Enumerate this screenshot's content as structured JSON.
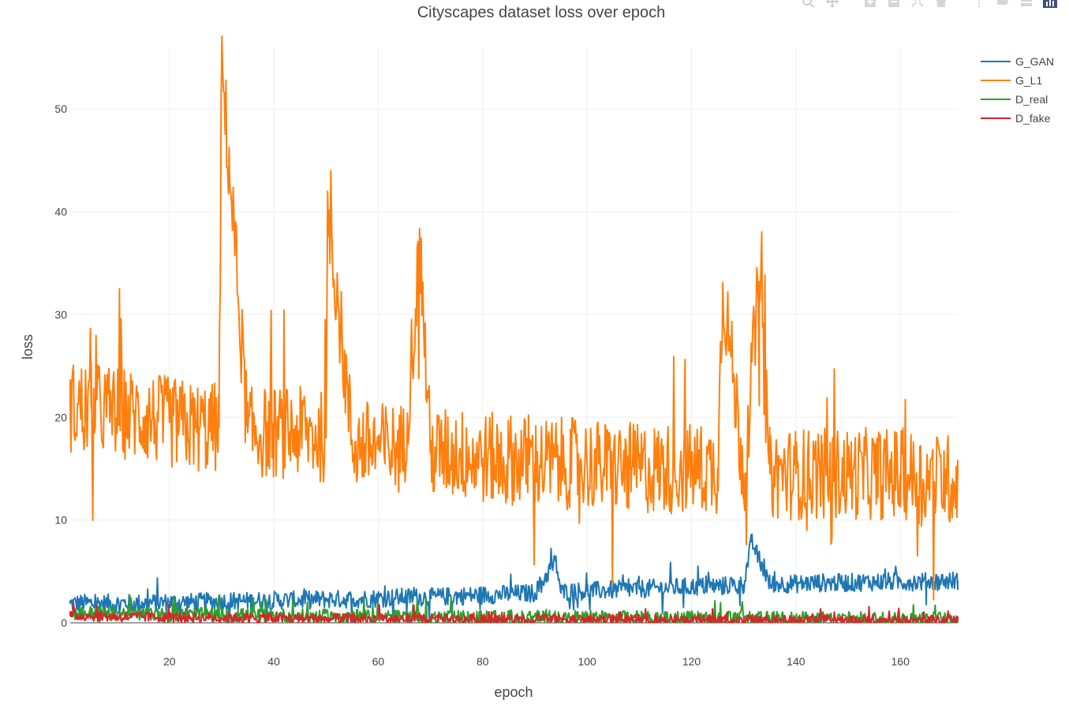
{
  "modebar": {
    "buttons": [
      "zoom-icon",
      "pan-icon",
      "zoom-in-icon",
      "zoom-out-icon",
      "autoscale-icon",
      "reset-axes-icon",
      "spike-lines-icon",
      "hover-closest-icon",
      "hover-compare-icon",
      "plotly-logo-icon"
    ]
  },
  "chart_data": {
    "type": "line",
    "title": "Cityscapes dataset loss over epoch",
    "xlabel": "epoch",
    "ylabel": "loss",
    "xlim": [
      1,
      171
    ],
    "ylim": [
      0,
      56
    ],
    "xticks": [
      20,
      40,
      60,
      80,
      100,
      120,
      140,
      160
    ],
    "yticks": [
      0,
      10,
      20,
      30,
      40,
      50
    ],
    "grid": true,
    "legend_position": "top-right",
    "series": [
      {
        "name": "G_GAN",
        "color": "#1f77b4",
        "x": [
          1,
          5,
          10,
          15,
          20,
          25,
          30,
          35,
          40,
          45,
          50,
          55,
          60,
          65,
          70,
          75,
          80,
          85,
          90,
          94,
          95,
          100,
          105,
          110,
          115,
          120,
          125,
          130,
          131.5,
          135,
          140,
          145,
          150,
          155,
          160,
          165,
          170,
          171
        ],
        "y": [
          1.9,
          1.9,
          1.9,
          1.9,
          2.0,
          2.0,
          2.1,
          2.1,
          2.2,
          2.2,
          2.3,
          2.3,
          2.4,
          2.5,
          2.5,
          2.6,
          2.7,
          2.8,
          2.9,
          6.0,
          3.0,
          3.1,
          3.2,
          3.3,
          3.4,
          3.5,
          3.6,
          3.7,
          7.9,
          3.8,
          3.8,
          3.9,
          3.9,
          4.0,
          4.0,
          4.0,
          4.1,
          4.1
        ]
      },
      {
        "name": "G_L1",
        "color": "#ff7f0e",
        "x": [
          1,
          5,
          10,
          15,
          20,
          25,
          29.5,
          30,
          31.5,
          35,
          40,
          45,
          50,
          50.5,
          55,
          60,
          65,
          68,
          70,
          75,
          80,
          85,
          90,
          95,
          100,
          105,
          110,
          115,
          120,
          125,
          126,
          130,
          133,
          135,
          140,
          145,
          150,
          155,
          160,
          165,
          170,
          171
        ],
        "y": [
          21,
          21,
          20.5,
          20,
          19.5,
          19,
          19,
          54.2,
          44.2,
          18.5,
          18.5,
          18.5,
          18,
          40.2,
          17.5,
          17,
          17,
          36.4,
          16.5,
          16.5,
          16,
          16,
          15.5,
          15.5,
          15.5,
          15,
          15,
          15,
          15,
          15,
          33.1,
          14.5,
          33.2,
          14.5,
          14.5,
          14.5,
          14.5,
          14.5,
          14.5,
          14,
          14,
          14
        ]
      },
      {
        "name": "D_real",
        "color": "#2ca02c",
        "x": [
          1,
          10,
          20,
          40,
          60,
          80,
          100,
          120,
          140,
          160,
          171
        ],
        "y": [
          1.0,
          0.9,
          0.8,
          0.7,
          0.6,
          0.5,
          0.5,
          0.45,
          0.4,
          0.4,
          0.4
        ]
      },
      {
        "name": "D_fake",
        "color": "#d62728",
        "x": [
          1,
          10,
          20,
          40,
          60,
          80,
          100,
          120,
          140,
          160,
          171
        ],
        "y": [
          0.7,
          0.6,
          0.55,
          0.45,
          0.4,
          0.35,
          0.3,
          0.3,
          0.25,
          0.25,
          0.25
        ]
      }
    ]
  }
}
